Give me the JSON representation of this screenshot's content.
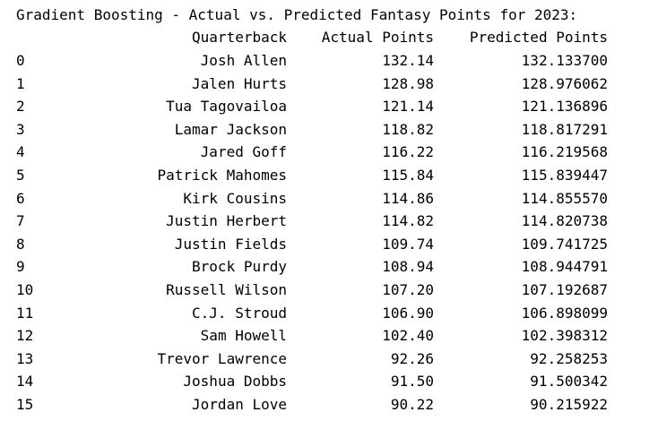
{
  "title": "Gradient Boosting - Actual vs. Predicted Fantasy Points for 2023:",
  "table": {
    "columns": [
      "Quarterback",
      "Actual Points",
      "Predicted Points"
    ],
    "rows": [
      {
        "index": "0",
        "quarterback": "Josh Allen",
        "actual": "132.14",
        "predicted": "132.133700"
      },
      {
        "index": "1",
        "quarterback": "Jalen Hurts",
        "actual": "128.98",
        "predicted": "128.976062"
      },
      {
        "index": "2",
        "quarterback": "Tua Tagovailoa",
        "actual": "121.14",
        "predicted": "121.136896"
      },
      {
        "index": "3",
        "quarterback": "Lamar Jackson",
        "actual": "118.82",
        "predicted": "118.817291"
      },
      {
        "index": "4",
        "quarterback": "Jared Goff",
        "actual": "116.22",
        "predicted": "116.219568"
      },
      {
        "index": "5",
        "quarterback": "Patrick Mahomes",
        "actual": "115.84",
        "predicted": "115.839447"
      },
      {
        "index": "6",
        "quarterback": "Kirk Cousins",
        "actual": "114.86",
        "predicted": "114.855570"
      },
      {
        "index": "7",
        "quarterback": "Justin Herbert",
        "actual": "114.82",
        "predicted": "114.820738"
      },
      {
        "index": "8",
        "quarterback": "Justin Fields",
        "actual": "109.74",
        "predicted": "109.741725"
      },
      {
        "index": "9",
        "quarterback": "Brock Purdy",
        "actual": "108.94",
        "predicted": "108.944791"
      },
      {
        "index": "10",
        "quarterback": "Russell Wilson",
        "actual": "107.20",
        "predicted": "107.192687"
      },
      {
        "index": "11",
        "quarterback": "C.J. Stroud",
        "actual": "106.90",
        "predicted": "106.898099"
      },
      {
        "index": "12",
        "quarterback": "Sam Howell",
        "actual": "102.40",
        "predicted": "102.398312"
      },
      {
        "index": "13",
        "quarterback": "Trevor Lawrence",
        "actual": "92.26",
        "predicted": "92.258253"
      },
      {
        "index": "14",
        "quarterback": "Joshua Dobbs",
        "actual": "91.50",
        "predicted": "91.500342"
      },
      {
        "index": "15",
        "quarterback": "Jordan Love",
        "actual": "90.22",
        "predicted": "90.215922"
      }
    ]
  }
}
